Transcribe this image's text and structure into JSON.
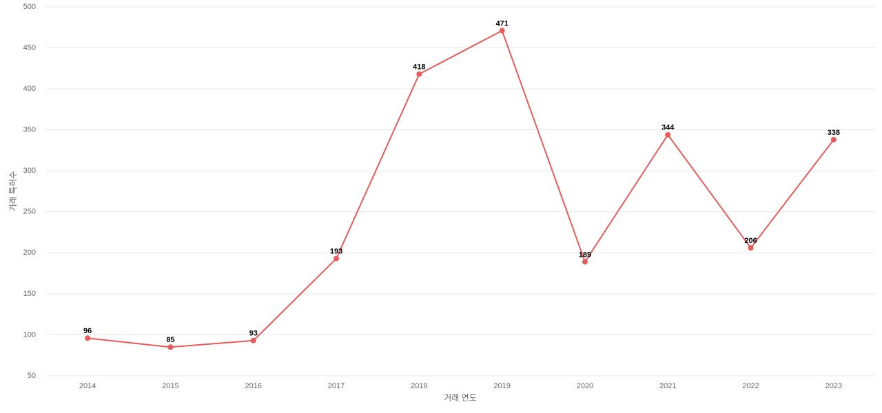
{
  "chart_data": {
    "type": "line",
    "x_label": "거래 연도",
    "y_label": "거래 특허수",
    "categories": [
      "2014",
      "2015",
      "2016",
      "2017",
      "2018",
      "2019",
      "2020",
      "2021",
      "2022",
      "2023"
    ],
    "series": [
      {
        "color": "#eb5a5a",
        "values": [
          96,
          85,
          93,
          193,
          418,
          471,
          189,
          344,
          206,
          338
        ]
      }
    ],
    "ylim": [
      50,
      500
    ],
    "yticks": [
      50,
      100,
      150,
      200,
      250,
      300,
      350,
      400,
      450,
      500
    ],
    "grid": true
  }
}
